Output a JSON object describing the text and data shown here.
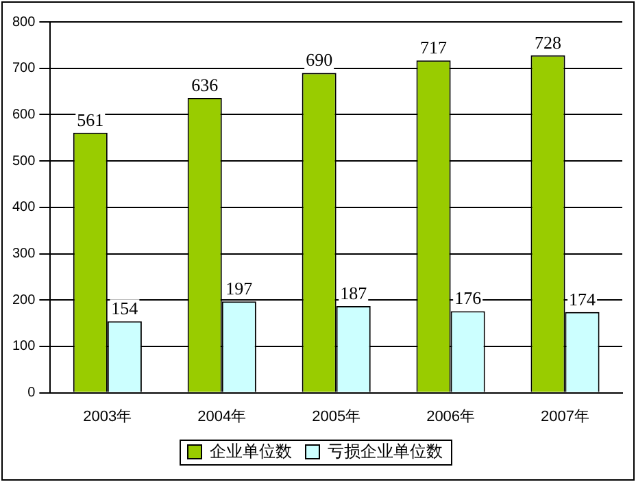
{
  "chart_data": {
    "type": "bar",
    "categories": [
      "2003年",
      "2004年",
      "2005年",
      "2006年",
      "2007年"
    ],
    "series": [
      {
        "name": "企业单位数",
        "color": "#99cc00",
        "values": [
          561,
          636,
          690,
          717,
          728
        ]
      },
      {
        "name": "亏损企业单位数",
        "color": "#ccffff",
        "values": [
          154,
          197,
          187,
          176,
          174
        ]
      }
    ],
    "ylim": [
      0,
      800
    ],
    "yticks": [
      0,
      100,
      200,
      300,
      400,
      500,
      600,
      700,
      800
    ],
    "grid": "y",
    "legend": "bottom",
    "data_labels": true
  }
}
